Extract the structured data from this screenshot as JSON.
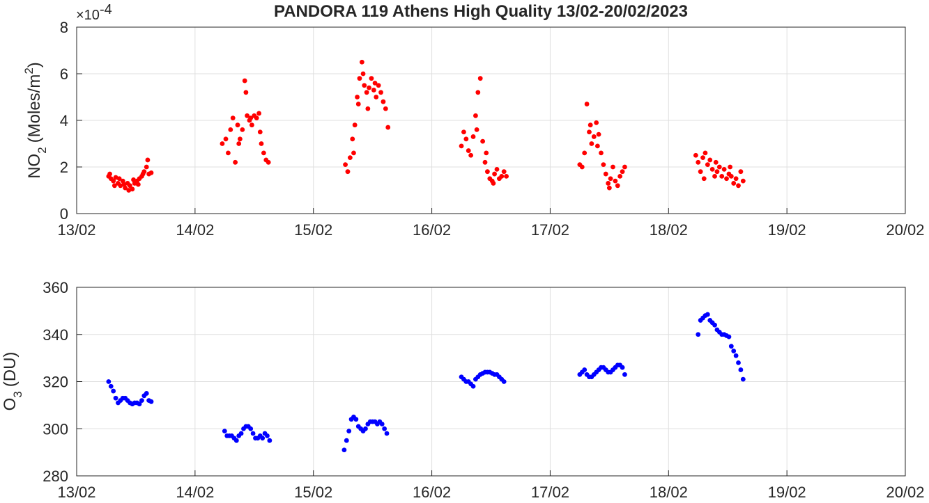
{
  "chart_data": [
    {
      "type": "scatter",
      "title": "PANDORA 119 Athens High Quality 13/02-20/02/2023",
      "ylabel": "NO",
      "ylabel_subscript": "2",
      "ylabel_suffix": "(Moles/m",
      "ylabel_superscript": "2",
      "ylabel_close": ")",
      "y_multiplier": "×10",
      "y_multiplier_exp": "-4",
      "xlim": [
        "13/02",
        "20/02"
      ],
      "ylim": [
        0,
        8
      ],
      "x_ticks": [
        "13/02",
        "14/02",
        "15/02",
        "16/02",
        "17/02",
        "18/02",
        "19/02",
        "20/02"
      ],
      "y_ticks": [
        "0",
        "2",
        "4",
        "6",
        "8"
      ],
      "grid": true,
      "marker_color": "#ff0000",
      "series": [
        {
          "values": [
            [
              0.27,
              1.6
            ],
            [
              0.29,
              1.5
            ],
            [
              0.31,
              1.4
            ],
            [
              0.33,
              1.55
            ],
            [
              0.35,
              1.3
            ],
            [
              0.37,
              1.2
            ],
            [
              0.39,
              1.4
            ],
            [
              0.41,
              1.1
            ],
            [
              0.43,
              1.3
            ],
            [
              0.45,
              1.2
            ],
            [
              0.47,
              1.05
            ],
            [
              0.49,
              1.3
            ],
            [
              0.51,
              1.4
            ],
            [
              0.53,
              1.5
            ],
            [
              0.55,
              1.6
            ],
            [
              0.57,
              1.8
            ],
            [
              0.59,
              2.0
            ],
            [
              0.61,
              1.7
            ],
            [
              0.63,
              1.75
            ],
            [
              0.28,
              1.7
            ],
            [
              0.32,
              1.2
            ],
            [
              0.36,
              1.5
            ],
            [
              0.4,
              1.25
            ],
            [
              0.44,
              1.0
            ],
            [
              0.48,
              1.45
            ],
            [
              0.52,
              1.25
            ],
            [
              0.56,
              1.7
            ],
            [
              0.6,
              2.3
            ],
            [
              1.23,
              3.0
            ],
            [
              1.26,
              3.2
            ],
            [
              1.28,
              2.6
            ],
            [
              1.3,
              3.6
            ],
            [
              1.32,
              4.1
            ],
            [
              1.34,
              2.2
            ],
            [
              1.36,
              3.8
            ],
            [
              1.38,
              3.2
            ],
            [
              1.4,
              3.6
            ],
            [
              1.42,
              5.7
            ],
            [
              1.44,
              4.2
            ],
            [
              1.46,
              4.0
            ],
            [
              1.48,
              3.8
            ],
            [
              1.5,
              4.2
            ],
            [
              1.52,
              4.1
            ],
            [
              1.54,
              4.3
            ],
            [
              1.56,
              3.0
            ],
            [
              1.58,
              2.6
            ],
            [
              1.6,
              2.3
            ],
            [
              1.62,
              2.2
            ],
            [
              1.37,
              3.0
            ],
            [
              1.43,
              5.2
            ],
            [
              1.47,
              4.1
            ],
            [
              1.55,
              3.5
            ],
            [
              2.27,
              2.1
            ],
            [
              2.29,
              1.8
            ],
            [
              2.31,
              2.4
            ],
            [
              2.33,
              3.2
            ],
            [
              2.35,
              3.8
            ],
            [
              2.37,
              5.0
            ],
            [
              2.39,
              5.8
            ],
            [
              2.41,
              6.5
            ],
            [
              2.43,
              5.5
            ],
            [
              2.45,
              5.2
            ],
            [
              2.47,
              5.4
            ],
            [
              2.49,
              5.8
            ],
            [
              2.51,
              5.3
            ],
            [
              2.53,
              5.0
            ],
            [
              2.55,
              5.5
            ],
            [
              2.57,
              5.2
            ],
            [
              2.59,
              4.8
            ],
            [
              2.61,
              4.5
            ],
            [
              2.63,
              3.7
            ],
            [
              2.34,
              2.6
            ],
            [
              2.38,
              4.7
            ],
            [
              2.42,
              6.0
            ],
            [
              2.46,
              4.5
            ],
            [
              2.52,
              5.6
            ],
            [
              3.25,
              2.9
            ],
            [
              3.27,
              3.5
            ],
            [
              3.29,
              3.2
            ],
            [
              3.31,
              2.7
            ],
            [
              3.33,
              2.5
            ],
            [
              3.35,
              3.3
            ],
            [
              3.37,
              4.2
            ],
            [
              3.39,
              5.2
            ],
            [
              3.41,
              5.8
            ],
            [
              3.43,
              3.1
            ],
            [
              3.45,
              2.2
            ],
            [
              3.47,
              1.8
            ],
            [
              3.49,
              1.5
            ],
            [
              3.51,
              1.4
            ],
            [
              3.53,
              1.7
            ],
            [
              3.55,
              1.9
            ],
            [
              3.57,
              1.5
            ],
            [
              3.59,
              1.6
            ],
            [
              3.61,
              1.8
            ],
            [
              3.63,
              1.6
            ],
            [
              3.38,
              3.6
            ],
            [
              3.46,
              2.6
            ],
            [
              3.52,
              1.3
            ],
            [
              4.25,
              2.1
            ],
            [
              4.27,
              2.0
            ],
            [
              4.29,
              2.6
            ],
            [
              4.31,
              4.7
            ],
            [
              4.33,
              3.5
            ],
            [
              4.35,
              3.0
            ],
            [
              4.37,
              3.3
            ],
            [
              4.39,
              3.9
            ],
            [
              4.41,
              3.4
            ],
            [
              4.43,
              2.6
            ],
            [
              4.45,
              2.1
            ],
            [
              4.47,
              1.7
            ],
            [
              4.49,
              1.3
            ],
            [
              4.51,
              1.5
            ],
            [
              4.53,
              2.0
            ],
            [
              4.55,
              1.4
            ],
            [
              4.57,
              1.2
            ],
            [
              4.59,
              1.6
            ],
            [
              4.61,
              1.8
            ],
            [
              4.63,
              2.0
            ],
            [
              4.34,
              3.8
            ],
            [
              4.4,
              2.9
            ],
            [
              4.5,
              1.1
            ],
            [
              5.23,
              2.5
            ],
            [
              5.25,
              2.2
            ],
            [
              5.27,
              1.8
            ],
            [
              5.29,
              2.4
            ],
            [
              5.31,
              2.6
            ],
            [
              5.33,
              2.1
            ],
            [
              5.35,
              2.3
            ],
            [
              5.37,
              1.9
            ],
            [
              5.39,
              1.6
            ],
            [
              5.41,
              1.8
            ],
            [
              5.43,
              2.0
            ],
            [
              5.45,
              1.6
            ],
            [
              5.47,
              1.9
            ],
            [
              5.49,
              1.5
            ],
            [
              5.51,
              1.7
            ],
            [
              5.53,
              1.6
            ],
            [
              5.55,
              1.3
            ],
            [
              5.57,
              1.5
            ],
            [
              5.59,
              1.2
            ],
            [
              5.61,
              1.8
            ],
            [
              5.63,
              1.4
            ],
            [
              5.3,
              1.5
            ],
            [
              5.4,
              2.2
            ],
            [
              5.52,
              2.0
            ]
          ]
        }
      ]
    },
    {
      "type": "scatter",
      "ylabel": "O",
      "ylabel_subscript": "3",
      "ylabel_suffix": "(DU)",
      "xlim": [
        "13/02",
        "20/02"
      ],
      "ylim": [
        280,
        360
      ],
      "x_ticks": [
        "13/02",
        "14/02",
        "15/02",
        "16/02",
        "17/02",
        "18/02",
        "19/02",
        "20/02"
      ],
      "y_ticks": [
        "280",
        "300",
        "320",
        "340",
        "360"
      ],
      "grid": true,
      "marker_color": "#0000ff",
      "series": [
        {
          "values": [
            [
              0.27,
              320
            ],
            [
              0.29,
              318
            ],
            [
              0.31,
              316
            ],
            [
              0.33,
              313
            ],
            [
              0.35,
              311
            ],
            [
              0.37,
              312
            ],
            [
              0.39,
              313
            ],
            [
              0.41,
              313
            ],
            [
              0.43,
              312
            ],
            [
              0.45,
              311
            ],
            [
              0.47,
              310.5
            ],
            [
              0.49,
              311
            ],
            [
              0.51,
              311
            ],
            [
              0.53,
              310.5
            ],
            [
              0.55,
              312
            ],
            [
              0.57,
              314
            ],
            [
              0.59,
              315
            ],
            [
              0.61,
              312
            ],
            [
              0.63,
              311.5
            ],
            [
              1.25,
              299
            ],
            [
              1.27,
              297
            ],
            [
              1.29,
              297
            ],
            [
              1.31,
              297
            ],
            [
              1.33,
              296
            ],
            [
              1.35,
              295
            ],
            [
              1.37,
              297
            ],
            [
              1.39,
              298
            ],
            [
              1.41,
              300
            ],
            [
              1.43,
              301
            ],
            [
              1.45,
              301
            ],
            [
              1.47,
              300
            ],
            [
              1.49,
              298
            ],
            [
              1.51,
              296
            ],
            [
              1.53,
              296
            ],
            [
              1.55,
              297
            ],
            [
              1.57,
              296
            ],
            [
              1.59,
              298
            ],
            [
              1.61,
              297
            ],
            [
              1.63,
              295
            ],
            [
              2.26,
              291
            ],
            [
              2.28,
              295
            ],
            [
              2.3,
              299
            ],
            [
              2.32,
              304
            ],
            [
              2.34,
              305
            ],
            [
              2.36,
              304
            ],
            [
              2.38,
              301
            ],
            [
              2.4,
              300
            ],
            [
              2.42,
              299
            ],
            [
              2.44,
              300
            ],
            [
              2.46,
              302
            ],
            [
              2.48,
              303
            ],
            [
              2.5,
              303
            ],
            [
              2.52,
              303
            ],
            [
              2.54,
              302
            ],
            [
              2.56,
              303
            ],
            [
              2.58,
              302
            ],
            [
              2.6,
              300
            ],
            [
              2.62,
              298
            ],
            [
              3.25,
              322
            ],
            [
              3.27,
              321
            ],
            [
              3.29,
              320
            ],
            [
              3.31,
              320
            ],
            [
              3.33,
              319
            ],
            [
              3.35,
              318
            ],
            [
              3.37,
              321
            ],
            [
              3.39,
              322
            ],
            [
              3.41,
              323
            ],
            [
              3.43,
              323.5
            ],
            [
              3.45,
              324
            ],
            [
              3.47,
              324
            ],
            [
              3.49,
              324
            ],
            [
              3.51,
              323.5
            ],
            [
              3.53,
              323
            ],
            [
              3.55,
              323
            ],
            [
              3.57,
              322
            ],
            [
              3.59,
              321
            ],
            [
              3.61,
              320
            ],
            [
              4.25,
              323
            ],
            [
              4.27,
              324
            ],
            [
              4.29,
              325
            ],
            [
              4.31,
              323
            ],
            [
              4.33,
              322
            ],
            [
              4.35,
              322
            ],
            [
              4.37,
              323
            ],
            [
              4.39,
              324
            ],
            [
              4.41,
              325
            ],
            [
              4.43,
              326
            ],
            [
              4.45,
              326
            ],
            [
              4.47,
              325
            ],
            [
              4.49,
              324
            ],
            [
              4.51,
              324
            ],
            [
              4.53,
              325
            ],
            [
              4.55,
              326
            ],
            [
              4.57,
              327
            ],
            [
              4.59,
              327
            ],
            [
              4.61,
              326
            ],
            [
              4.63,
              323
            ],
            [
              5.25,
              340
            ],
            [
              5.27,
              346
            ],
            [
              5.29,
              347
            ],
            [
              5.31,
              348
            ],
            [
              5.33,
              348.5
            ],
            [
              5.35,
              346
            ],
            [
              5.37,
              345
            ],
            [
              5.39,
              344
            ],
            [
              5.41,
              342
            ],
            [
              5.43,
              341
            ],
            [
              5.45,
              340
            ],
            [
              5.47,
              340
            ],
            [
              5.49,
              339.5
            ],
            [
              5.51,
              339
            ],
            [
              5.53,
              335
            ],
            [
              5.55,
              333
            ],
            [
              5.57,
              331
            ],
            [
              5.59,
              328
            ],
            [
              5.61,
              325
            ],
            [
              5.63,
              321
            ]
          ]
        }
      ]
    }
  ]
}
